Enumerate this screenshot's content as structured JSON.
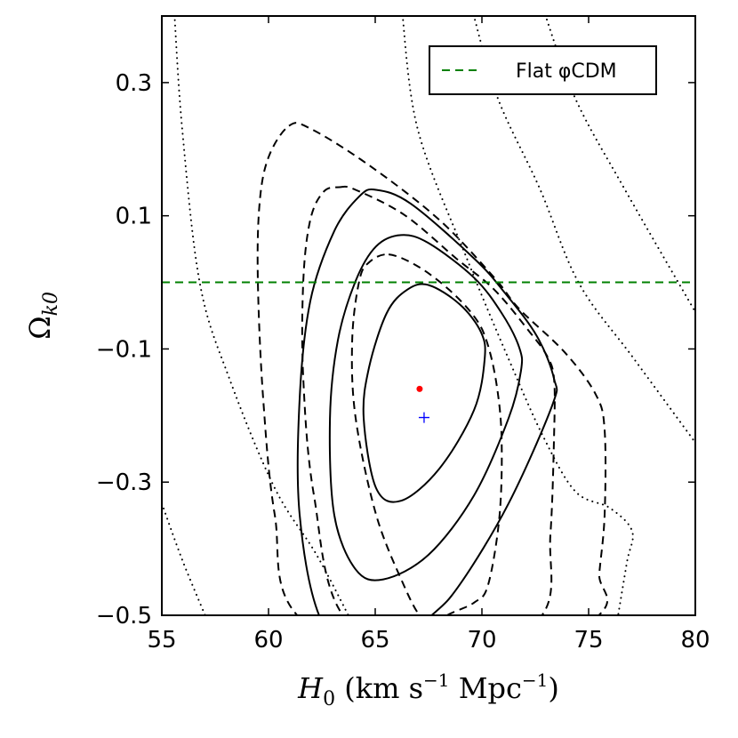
{
  "chart_data": {
    "type": "contour",
    "title": "",
    "xlabel": {
      "symbol": "H",
      "sub": "0",
      "units_open": " (km s",
      "exp1": "−1",
      "units_mid": " Mpc",
      "exp2": "−1",
      "units_close": ")"
    },
    "ylabel": {
      "symbol": "Ω",
      "sub": "k0"
    },
    "xlim": [
      55,
      80
    ],
    "ylim": [
      -0.5,
      0.4
    ],
    "xticks": [
      55,
      60,
      65,
      70,
      75,
      80
    ],
    "xtick_labels": [
      "55",
      "60",
      "65",
      "70",
      "75",
      "80"
    ],
    "yticks": [
      -0.5,
      -0.3,
      -0.1,
      0.1,
      0.3
    ],
    "ytick_labels": [
      "−0.5",
      "−0.3",
      "−0.1",
      "0.1",
      "0.3"
    ],
    "grid": false,
    "legend": {
      "placement": "top-right",
      "entries": [
        {
          "label": "Flat φCDM",
          "style": "dashed",
          "color": "#008000"
        }
      ]
    },
    "hline": {
      "y": 0.0,
      "color": "#008000",
      "style": "dashed"
    },
    "series": [
      {
        "name": "solid contours",
        "style": "solid",
        "color": "#000000",
        "closed": true,
        "contours": [
          [
            [
              67.5,
              -0.004
            ],
            [
              68.96,
              -0.033
            ],
            [
              69.96,
              -0.075
            ],
            [
              70.13,
              -0.115
            ],
            [
              69.63,
              -0.192
            ],
            [
              68.0,
              -0.28
            ],
            [
              66.21,
              -0.328
            ],
            [
              65.04,
              -0.309
            ],
            [
              64.46,
              -0.204
            ],
            [
              64.71,
              -0.128
            ],
            [
              65.54,
              -0.046
            ],
            [
              66.5,
              -0.011
            ]
          ],
          [
            [
              66.21,
              0.071
            ],
            [
              67.5,
              0.059
            ],
            [
              69.63,
              0.007
            ],
            [
              70.92,
              -0.046
            ],
            [
              71.75,
              -0.098
            ],
            [
              71.83,
              -0.133
            ],
            [
              71.25,
              -0.204
            ],
            [
              69.63,
              -0.32
            ],
            [
              67.5,
              -0.409
            ],
            [
              65.38,
              -0.446
            ],
            [
              64.08,
              -0.431
            ],
            [
              63.08,
              -0.349
            ],
            [
              62.88,
              -0.204
            ],
            [
              63.25,
              -0.087
            ],
            [
              64.08,
              0.002
            ],
            [
              65.04,
              0.054
            ]
          ],
          [
            [
              65.04,
              0.139
            ],
            [
              66.67,
              0.118
            ],
            [
              69.63,
              0.036
            ],
            [
              71.08,
              -0.016
            ],
            [
              72.58,
              -0.081
            ],
            [
              73.38,
              -0.145
            ],
            [
              73.29,
              -0.185
            ],
            [
              71.25,
              -0.332
            ],
            [
              68.96,
              -0.454
            ],
            [
              67.5,
              -0.504
            ],
            [
              64.5,
              -0.58
            ],
            [
              62.42,
              -0.504
            ],
            [
              61.46,
              -0.349
            ],
            [
              61.46,
              -0.175
            ],
            [
              61.96,
              -0.028
            ],
            [
              63.08,
              0.077
            ],
            [
              64.25,
              0.129
            ]
          ]
        ]
      },
      {
        "name": "dashed contours",
        "style": "dashed",
        "color": "#000000",
        "closed": true,
        "contours": [
          [
            [
              65.63,
              0.042
            ],
            [
              67.0,
              0.024
            ],
            [
              68.46,
              -0.011
            ],
            [
              69.63,
              -0.051
            ],
            [
              70.21,
              -0.087
            ],
            [
              70.67,
              -0.15
            ],
            [
              70.92,
              -0.232
            ],
            [
              70.83,
              -0.349
            ],
            [
              70.29,
              -0.454
            ],
            [
              69.63,
              -0.481
            ],
            [
              68.33,
              -0.501
            ],
            [
              68.0,
              -0.52
            ],
            [
              67.17,
              -0.504
            ],
            [
              66.33,
              -0.454
            ],
            [
              65.04,
              -0.349
            ],
            [
              64.08,
              -0.203
            ],
            [
              63.92,
              -0.087
            ],
            [
              64.25,
              0.002
            ],
            [
              64.71,
              0.03
            ]
          ],
          [
            [
              63.33,
              0.143
            ],
            [
              64.08,
              0.139
            ],
            [
              66.38,
              0.101
            ],
            [
              68.79,
              0.036
            ],
            [
              70.58,
              -0.011
            ],
            [
              72.25,
              -0.075
            ],
            [
              73.04,
              -0.11
            ],
            [
              73.38,
              -0.145
            ],
            [
              73.38,
              -0.232
            ],
            [
              73.21,
              -0.379
            ],
            [
              72.79,
              -0.501
            ],
            [
              68.5,
              -0.58
            ],
            [
              63.58,
              -0.504
            ],
            [
              62.13,
              -0.32
            ],
            [
              61.63,
              -0.145
            ],
            [
              61.63,
              0.002
            ],
            [
              61.96,
              0.094
            ],
            [
              62.58,
              0.136
            ]
          ],
          [
            [
              60.96,
              0.235
            ],
            [
              61.96,
              0.231
            ],
            [
              64.71,
              0.176
            ],
            [
              68.0,
              0.094
            ],
            [
              70.58,
              0.007
            ],
            [
              71.75,
              -0.04
            ],
            [
              73.88,
              -0.105
            ],
            [
              75.33,
              -0.168
            ],
            [
              75.75,
              -0.222
            ],
            [
              75.75,
              -0.349
            ],
            [
              75.5,
              -0.437
            ],
            [
              75.33,
              -0.504
            ],
            [
              68.5,
              -0.62
            ],
            [
              61.46,
              -0.504
            ],
            [
              60.29,
              -0.349
            ],
            [
              59.75,
              -0.175
            ],
            [
              59.5,
              0.002
            ],
            [
              59.58,
              0.118
            ],
            [
              60.0,
              0.188
            ]
          ]
        ]
      },
      {
        "name": "dotted contours",
        "style": "dotted",
        "color": "#000000",
        "closed": false,
        "contours": [
          [
            [
              55.0,
              -0.332
            ],
            [
              55.96,
              -0.417
            ],
            [
              57.04,
              -0.501
            ]
          ],
          [
            [
              55.58,
              0.41
            ],
            [
              55.96,
              0.229
            ],
            [
              56.79,
              -0.003
            ],
            [
              58.17,
              -0.145
            ],
            [
              60.29,
              -0.309
            ],
            [
              62.25,
              -0.409
            ],
            [
              63.9,
              -0.51
            ]
          ],
          [
            [
              66.25,
              0.41
            ],
            [
              67.0,
              0.229
            ],
            [
              69.29,
              0.036
            ],
            [
              71.25,
              -0.115
            ],
            [
              72.88,
              -0.232
            ],
            [
              74.38,
              -0.314
            ],
            [
              76.0,
              -0.339
            ],
            [
              77.04,
              -0.374
            ],
            [
              76.79,
              -0.421
            ],
            [
              76.33,
              -0.51
            ]
          ],
          [
            [
              69.54,
              0.41
            ],
            [
              70.75,
              0.276
            ],
            [
              72.71,
              0.141
            ],
            [
              74.54,
              -0.001
            ],
            [
              77.13,
              -0.115
            ],
            [
              80.1,
              -0.245
            ]
          ],
          [
            [
              72.88,
              0.41
            ],
            [
              74.38,
              0.276
            ],
            [
              76.67,
              0.141
            ],
            [
              80.1,
              -0.05
            ]
          ]
        ]
      }
    ],
    "points": [
      {
        "name": "best-fit",
        "x": 67.08,
        "y": -0.16,
        "marker": "dot",
        "color": "#ff0000"
      },
      {
        "name": "reference",
        "x": 67.29,
        "y": -0.203,
        "marker": "plus",
        "color": "#0000ff"
      }
    ]
  }
}
